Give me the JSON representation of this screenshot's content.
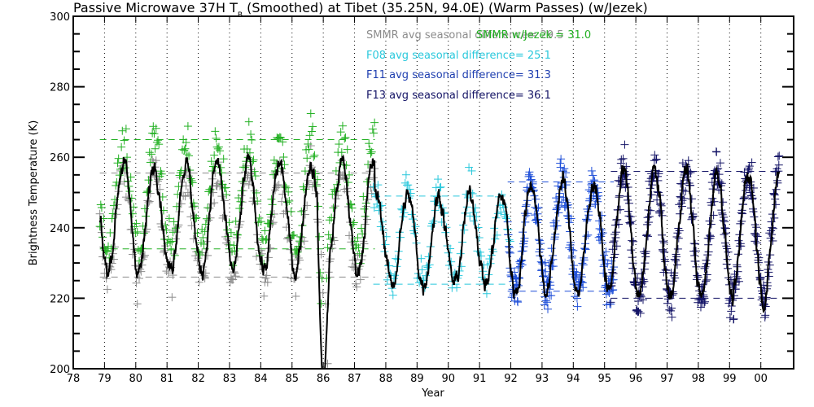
{
  "chart_data": {
    "type": "scatter",
    "title": "Passive Microwave 37H T",
    "title_subscript": "B",
    "title_rest": " (Smoothed) at Tibet (35.25N, 94.0E) (Warm Passes) (w/Jezek)",
    "xlabel": "Year",
    "ylabel": "Brightness Temperature (K)",
    "xlim": [
      78,
      101.05
    ],
    "ylim": [
      200,
      300
    ],
    "grid": "vertical dotted at each year",
    "x_ticks": [
      78,
      79,
      80,
      81,
      82,
      83,
      84,
      85,
      86,
      87,
      88,
      89,
      90,
      91,
      92,
      93,
      94,
      95,
      96,
      97,
      98,
      99,
      100
    ],
    "x_tick_labels": [
      "78",
      "79",
      "80",
      "81",
      "82",
      "83",
      "84",
      "85",
      "86",
      "87",
      "88",
      "89",
      "90",
      "91",
      "92",
      "93",
      "94",
      "95",
      "96",
      "97",
      "98",
      "99",
      "00"
    ],
    "y_ticks": [
      200,
      220,
      240,
      260,
      280,
      300
    ],
    "y_tick_labels": [
      "200",
      "220",
      "240",
      "260",
      "280",
      "300"
    ],
    "y_minor_step": 5,
    "annotations": [
      {
        "text": "SMMR avg seasonal difference=  29.5",
        "color": "#8c8c8c"
      },
      {
        "text": "SMMR w/Jezek =  31.0",
        "color": "#22b022"
      },
      {
        "text": "F08 avg seasonal difference=  25.1",
        "color": "#29c8dc"
      },
      {
        "text": "F11 avg seasonal difference=  31.3",
        "color": "#1f3fb0"
      },
      {
        "text": "F13 avg seasonal difference=  36.1",
        "color": "#141466"
      }
    ],
    "series": [
      {
        "name": "SMMR",
        "color": "#8c8c8c",
        "marker": "plus",
        "x_range": [
          78.85,
          87.65
        ],
        "seasonal_min": 226,
        "seasonal_max": 255.5,
        "phase_peak": 0.6
      },
      {
        "name": "SMMR w/Jezek",
        "color": "#22b022",
        "marker": "plus",
        "x_range": [
          78.85,
          87.65
        ],
        "seasonal_min": 234,
        "seasonal_max": 265,
        "phase_peak": 0.6
      },
      {
        "name": "F08",
        "color": "#29c8dc",
        "marker": "plus",
        "x_range": [
          87.6,
          92.0
        ],
        "seasonal_min": 224,
        "seasonal_max": 249,
        "phase_peak": 0.7
      },
      {
        "name": "F11",
        "color": "#1f4fd8",
        "marker": "plus",
        "x_range": [
          91.9,
          95.3
        ],
        "seasonal_min": 222,
        "seasonal_max": 253,
        "phase_peak": 0.65
      },
      {
        "name": "F13",
        "color": "#141466",
        "marker": "plus",
        "x_range": [
          95.2,
          100.6
        ],
        "seasonal_min": 220,
        "seasonal_max": 256,
        "phase_peak": 0.6
      }
    ],
    "smoothed_line": {
      "name": "Smoothed",
      "color": "#000000",
      "x_range": [
        78.85,
        100.6
      ],
      "gap_dropout": {
        "x": [
          85.9,
          86.1
        ],
        "min": 190
      }
    },
    "reference_lines": [
      {
        "series": "SMMR",
        "values": [
          226,
          255.5
        ],
        "color": "#8c8c8c",
        "x_range": [
          78.85,
          87.65
        ]
      },
      {
        "series": "SMMR w/Jezek",
        "values": [
          234,
          265
        ],
        "color": "#22b022",
        "x_range": [
          78.85,
          87.65
        ]
      },
      {
        "series": "F08",
        "values": [
          224,
          249
        ],
        "color": "#29c8dc",
        "x_range": [
          87.6,
          92.0
        ]
      },
      {
        "series": "F11",
        "values": [
          222,
          253
        ],
        "color": "#1f4fd8",
        "x_range": [
          91.9,
          95.3
        ]
      },
      {
        "series": "F13",
        "values": [
          220,
          256
        ],
        "color": "#141466",
        "x_range": [
          95.2,
          100.6
        ]
      }
    ]
  }
}
